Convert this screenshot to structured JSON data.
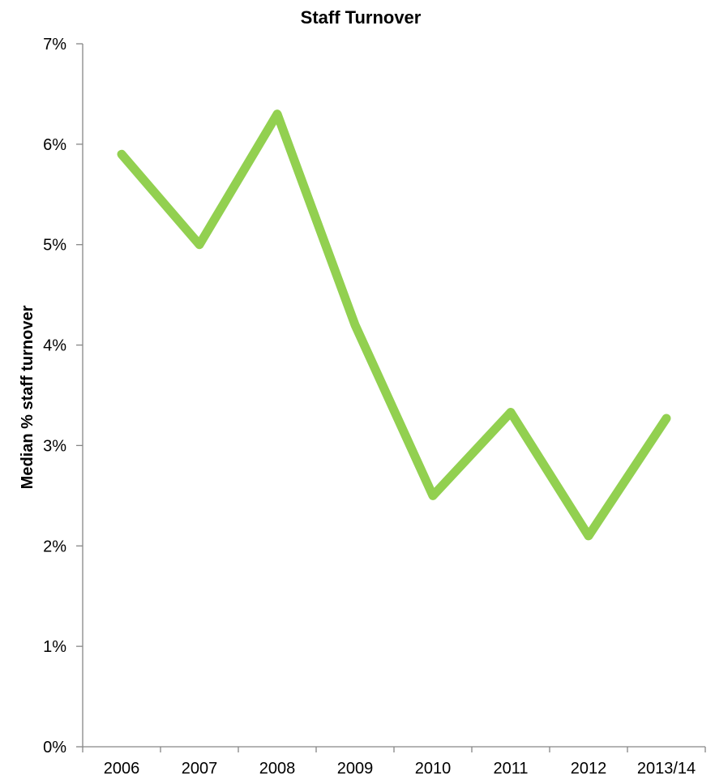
{
  "chart_data": {
    "type": "line",
    "title": "Staff Turnover",
    "xlabel": "",
    "ylabel": "Median % staff turnover",
    "categories": [
      "2006",
      "2007",
      "2008",
      "2009",
      "2010",
      "2011",
      "2012",
      "2013/14"
    ],
    "series": [
      {
        "values": [
          5.9,
          5.0,
          6.3,
          4.2,
          2.5,
          3.33,
          2.1,
          3.27
        ],
        "color": "#92d050"
      }
    ],
    "ylim": [
      0,
      7
    ],
    "yticks": [
      0,
      1,
      2,
      3,
      4,
      5,
      6,
      7
    ],
    "ytick_labels": [
      "0%",
      "1%",
      "2%",
      "3%",
      "4%",
      "5%",
      "6%",
      "7%"
    ],
    "grid": false,
    "legend": "none"
  }
}
